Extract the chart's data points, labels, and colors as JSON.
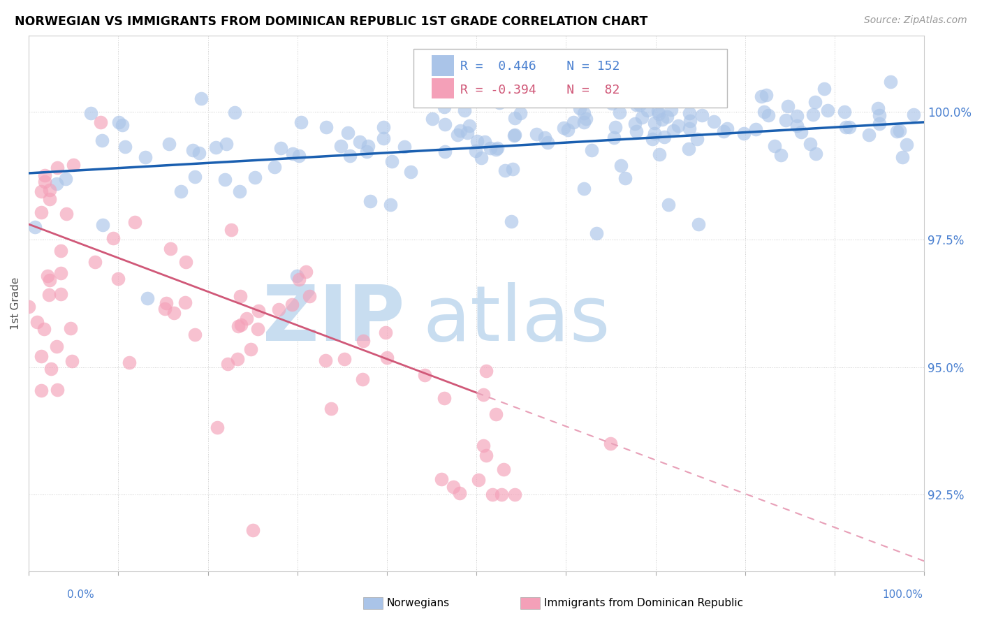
{
  "title": "NORWEGIAN VS IMMIGRANTS FROM DOMINICAN REPUBLIC 1ST GRADE CORRELATION CHART",
  "source": "Source: ZipAtlas.com",
  "ylabel": "1st Grade",
  "r_norwegian": 0.446,
  "n_norwegian": 152,
  "r_dominican": -0.394,
  "n_dominican": 82,
  "xmin": 0.0,
  "xmax": 100.0,
  "ymin": 91.0,
  "ymax": 101.5,
  "norwegian_color": "#aac4e8",
  "dominican_color": "#f4a0b8",
  "norwegian_line_color": "#1a5fb0",
  "dominican_line_color": "#d05878",
  "dominican_dash_color": "#e8a0b8",
  "grid_color": "#cccccc",
  "grid_style": "dotted",
  "ytick_vals": [
    92.5,
    95.0,
    97.5,
    100.0
  ],
  "ytick_labels": [
    "92.5%",
    "95.0%",
    "97.5%",
    "100.0%"
  ],
  "ytick_color": "#4a80d0",
  "watermark_zip_color": "#c8ddf0",
  "watermark_atlas_color": "#c8ddf0",
  "legend_norwegian": "Norwegians",
  "legend_dominican": "Immigrants from Dominican Republic",
  "legend_bg": "white",
  "legend_edge": "#bbbbbb"
}
